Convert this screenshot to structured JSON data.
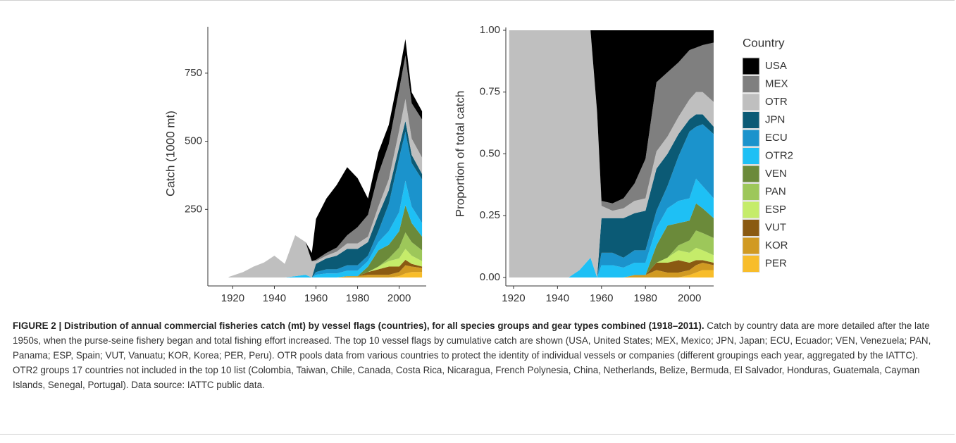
{
  "chart_data": [
    {
      "type": "area",
      "stacked": true,
      "y_label": "Catch (1000 mt)",
      "x": [
        1918,
        1925,
        1930,
        1935,
        1940,
        1945,
        1950,
        1955,
        1958,
        1960,
        1965,
        1970,
        1975,
        1980,
        1985,
        1990,
        1995,
        2000,
        2003,
        2006,
        2011
      ],
      "xlim": [
        1908,
        2013
      ],
      "xticks": [
        1920,
        1940,
        1960,
        1980,
        2000
      ],
      "ylim": [
        0,
        910
      ],
      "yticks": [
        250,
        500,
        750
      ],
      "series": [
        {
          "color": "#000000",
          "values": [
            0,
            0,
            0,
            0,
            0,
            0,
            0,
            0,
            30,
            150,
            200,
            230,
            250,
            180,
            60,
            80,
            70,
            60,
            60,
            40,
            30
          ]
        },
        {
          "color": "#7f7f7f",
          "values": [
            0,
            0,
            0,
            0,
            0,
            0,
            0,
            0,
            0,
            5,
            10,
            15,
            30,
            60,
            80,
            120,
            130,
            150,
            160,
            130,
            140
          ]
        },
        {
          "color": "#bfbfbf",
          "values": [
            2,
            20,
            40,
            55,
            80,
            50,
            150,
            120,
            60,
            10,
            10,
            15,
            20,
            20,
            20,
            30,
            40,
            60,
            80,
            60,
            60
          ]
        },
        {
          "color": "#0b5a75",
          "values": [
            0,
            0,
            0,
            0,
            0,
            0,
            0,
            0,
            0,
            30,
            40,
            50,
            60,
            60,
            50,
            60,
            50,
            40,
            40,
            30,
            20
          ]
        },
        {
          "color": "#1b93cc",
          "values": [
            0,
            0,
            0,
            0,
            0,
            0,
            0,
            0,
            0,
            10,
            15,
            15,
            20,
            20,
            20,
            40,
            100,
            200,
            180,
            160,
            160
          ]
        },
        {
          "color": "#1ec0f5",
          "values": [
            0,
            0,
            0,
            0,
            0,
            0,
            5,
            10,
            0,
            10,
            15,
            15,
            20,
            20,
            20,
            30,
            50,
            70,
            90,
            60,
            50
          ]
        },
        {
          "color": "#6b8a3a",
          "values": [
            0,
            0,
            0,
            0,
            0,
            0,
            0,
            0,
            0,
            0,
            0,
            0,
            0,
            0,
            20,
            60,
            50,
            60,
            100,
            70,
            50
          ]
        },
        {
          "color": "#9dc75a",
          "values": [
            0,
            0,
            0,
            0,
            0,
            0,
            0,
            0,
            0,
            0,
            0,
            0,
            0,
            0,
            0,
            0,
            10,
            40,
            60,
            50,
            40
          ]
        },
        {
          "color": "#c5ec6a",
          "values": [
            0,
            0,
            0,
            0,
            0,
            0,
            0,
            0,
            0,
            0,
            0,
            0,
            0,
            0,
            0,
            10,
            20,
            30,
            40,
            30,
            20
          ]
        },
        {
          "color": "#8a5a12",
          "values": [
            0,
            0,
            0,
            0,
            0,
            0,
            0,
            0,
            0,
            0,
            0,
            0,
            0,
            0,
            10,
            20,
            30,
            20,
            20,
            10,
            5
          ]
        },
        {
          "color": "#d19a22",
          "values": [
            0,
            0,
            0,
            0,
            0,
            0,
            0,
            0,
            0,
            0,
            0,
            0,
            5,
            5,
            10,
            10,
            10,
            15,
            30,
            20,
            15
          ]
        },
        {
          "color": "#f8bd2a",
          "values": [
            0,
            0,
            0,
            0,
            0,
            0,
            0,
            0,
            0,
            0,
            0,
            0,
            0,
            0,
            0,
            0,
            0,
            5,
            15,
            20,
            20
          ]
        }
      ]
    },
    {
      "type": "area",
      "stacked": true,
      "y_label": "Proportion of total catch",
      "legend_title": "Country",
      "x": [
        1918,
        1925,
        1930,
        1935,
        1940,
        1945,
        1950,
        1955,
        1958,
        1960,
        1965,
        1970,
        1975,
        1980,
        1985,
        1990,
        1995,
        2000,
        2003,
        2006,
        2011
      ],
      "xlim": [
        1916.5,
        2011
      ],
      "xticks": [
        1920,
        1940,
        1960,
        1980,
        2000
      ],
      "ylim": [
        0,
        1
      ],
      "yticks": [
        {
          "value": 0,
          "label": "0.00"
        },
        {
          "value": 0.25,
          "label": "0.25"
        },
        {
          "value": 0.5,
          "label": "0.50"
        },
        {
          "value": 0.75,
          "label": "0.75"
        },
        {
          "value": 1,
          "label": "1.00"
        }
      ],
      "series": [
        {
          "name": "USA",
          "color": "#000000",
          "values": [
            0,
            0,
            0,
            0,
            0,
            0,
            0,
            0,
            0.33,
            0.69,
            0.7,
            0.68,
            0.62,
            0.52,
            0.21,
            0.17,
            0.13,
            0.08,
            0.07,
            0.06,
            0.05
          ]
        },
        {
          "name": "MEX",
          "color": "#7f7f7f",
          "values": [
            0,
            0,
            0,
            0,
            0,
            0,
            0,
            0,
            0,
            0.02,
            0.03,
            0.04,
            0.07,
            0.16,
            0.28,
            0.26,
            0.22,
            0.2,
            0.18,
            0.19,
            0.24
          ]
        },
        {
          "name": "OTR",
          "color": "#bfbfbf",
          "values": [
            1,
            1,
            1,
            1,
            1,
            1,
            0.97,
            0.92,
            0.67,
            0.05,
            0.03,
            0.04,
            0.05,
            0.05,
            0.07,
            0.07,
            0.07,
            0.08,
            0.09,
            0.09,
            0.1
          ]
        },
        {
          "name": "JPN",
          "color": "#0b5a75",
          "values": [
            0,
            0,
            0,
            0,
            0,
            0,
            0,
            0,
            0,
            0.14,
            0.14,
            0.16,
            0.15,
            0.16,
            0.17,
            0.13,
            0.09,
            0.05,
            0.05,
            0.04,
            0.03
          ]
        },
        {
          "name": "ECU",
          "color": "#1b93cc",
          "values": [
            0,
            0,
            0,
            0,
            0,
            0,
            0,
            0,
            0,
            0.05,
            0.05,
            0.04,
            0.05,
            0.05,
            0.07,
            0.09,
            0.18,
            0.27,
            0.21,
            0.25,
            0.26
          ]
        },
        {
          "name": "OTR2",
          "color": "#1ec0f5",
          "values": [
            0,
            0,
            0,
            0,
            0,
            0,
            0.03,
            0.08,
            0,
            0.05,
            0.05,
            0.04,
            0.05,
            0.05,
            0.07,
            0.07,
            0.09,
            0.09,
            0.1,
            0.09,
            0.08
          ]
        },
        {
          "name": "VEN",
          "color": "#6b8a3a",
          "values": [
            0,
            0,
            0,
            0,
            0,
            0,
            0,
            0,
            0,
            0,
            0,
            0,
            0,
            0,
            0.07,
            0.13,
            0.09,
            0.08,
            0.11,
            0.1,
            0.08
          ]
        },
        {
          "name": "PAN",
          "color": "#9dc75a",
          "values": [
            0,
            0,
            0,
            0,
            0,
            0,
            0,
            0,
            0,
            0,
            0,
            0,
            0,
            0,
            0,
            0,
            0.02,
            0.05,
            0.07,
            0.07,
            0.07
          ]
        },
        {
          "name": "ESP",
          "color": "#c5ec6a",
          "values": [
            0,
            0,
            0,
            0,
            0,
            0,
            0,
            0,
            0,
            0,
            0,
            0,
            0,
            0,
            0,
            0.02,
            0.04,
            0.04,
            0.05,
            0.04,
            0.03
          ]
        },
        {
          "name": "VUT",
          "color": "#8a5a12",
          "values": [
            0,
            0,
            0,
            0,
            0,
            0,
            0,
            0,
            0,
            0,
            0,
            0,
            0,
            0,
            0.03,
            0.04,
            0.05,
            0.03,
            0.02,
            0.01,
            0.01
          ]
        },
        {
          "name": "KOR",
          "color": "#d19a22",
          "values": [
            0,
            0,
            0,
            0,
            0,
            0,
            0,
            0,
            0,
            0,
            0,
            0,
            0.01,
            0.01,
            0.03,
            0.02,
            0.02,
            0.02,
            0.03,
            0.03,
            0.02
          ]
        },
        {
          "name": "PER",
          "color": "#f8bd2a",
          "values": [
            0,
            0,
            0,
            0,
            0,
            0,
            0,
            0,
            0,
            0,
            0,
            0,
            0,
            0,
            0,
            0,
            0,
            0.01,
            0.02,
            0.03,
            0.03
          ]
        }
      ]
    }
  ],
  "caption": {
    "title": "FIGURE 2 | Distribution of annual commercial fisheries catch (mt) by vessel flags (countries), for all species groups and gear types combined (1918–2011).",
    "text": "Catch by country data are more detailed after the late 1950s, when the purse-seine fishery began and total fishing effort increased. The top 10 vessel flags by cumulative catch are shown (USA, United States; MEX, Mexico; JPN, Japan; ECU, Ecuador; VEN, Venezuela; PAN, Panama; ESP, Spain; VUT, Vanuatu; KOR, Korea; PER, Peru). OTR pools data from various countries to protect the identity of individual vessels or companies (different groupings each year, aggregated by the IATTC). OTR2 groups 17 countries not included in the top 10 list (Colombia, Taiwan, Chile, Canada, Costa Rica, Nicaragua, French Polynesia, China, Netherlands, Belize, Bermuda, El Salvador, Honduras, Guatemala, Cayman Islands, Senegal, Portugal). Data source: IATTC public data."
  }
}
